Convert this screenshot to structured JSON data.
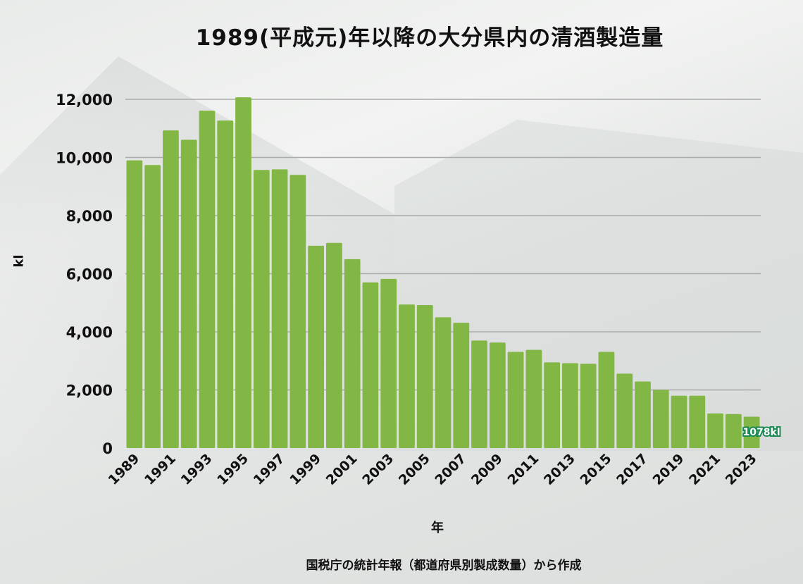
{
  "chart_data": {
    "type": "bar",
    "title": "1989(平成元)年以降の大分県内の清酒製造量",
    "xlabel": "年",
    "ylabel": "kl",
    "ylim": [
      0,
      12000
    ],
    "yticks": [
      "0",
      "2,000",
      "4,000",
      "6,000",
      "8,000",
      "10,000",
      "12,000"
    ],
    "ytick_values": [
      0,
      2000,
      4000,
      6000,
      8000,
      10000,
      12000
    ],
    "grid": true,
    "categories": [
      "1989",
      "1990",
      "1991",
      "1992",
      "1993",
      "1994",
      "1995",
      "1996",
      "1997",
      "1998",
      "1999",
      "2000",
      "2001",
      "2002",
      "2003",
      "2004",
      "2005",
      "2006",
      "2007",
      "2008",
      "2009",
      "2010",
      "2011",
      "2012",
      "2013",
      "2014",
      "2015",
      "2016",
      "2017",
      "2018",
      "2019",
      "2020",
      "2021",
      "2022",
      "2023"
    ],
    "values": [
      9900,
      9740,
      10930,
      10610,
      11610,
      11270,
      12070,
      9570,
      9590,
      9400,
      6960,
      7060,
      6500,
      5700,
      5820,
      4940,
      4920,
      4500,
      4310,
      3700,
      3630,
      3310,
      3380,
      2950,
      2920,
      2900,
      3310,
      2560,
      2290,
      2000,
      1800,
      1800,
      1190,
      1170,
      1078
    ],
    "annotation": "1078kl",
    "source": "国税庁の統計年報（都道府県別製成数量）から作成",
    "colors": {
      "bar": "#82b745",
      "grid": "#aaaaaa",
      "annotation_bg": "#1a8a55"
    }
  }
}
